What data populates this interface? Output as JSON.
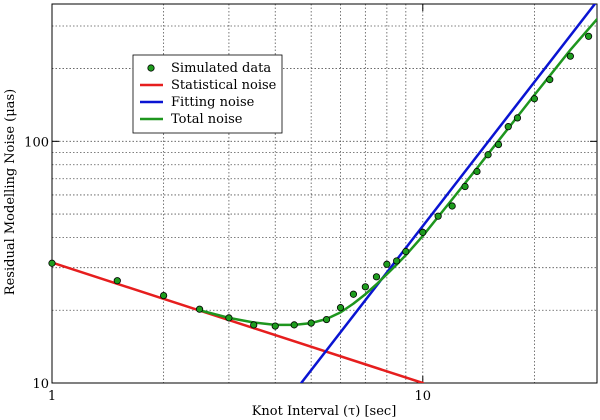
{
  "chart_data": {
    "type": "line",
    "xlabel": "Knot Interval (τ) [sec]",
    "ylabel": "Residual Modelling Noise (μas)",
    "xscale": "log",
    "yscale": "log",
    "xlim": [
      1,
      29.5
    ],
    "ylim": [
      10,
      370
    ],
    "grid": true,
    "legend_position": "upper-left",
    "x_ticks": [
      1,
      10
    ],
    "x_tick_labels": [
      "1",
      "10"
    ],
    "y_ticks": [
      10,
      100
    ],
    "y_tick_labels": [
      "10",
      "100"
    ],
    "series": [
      {
        "name": "Simulated data",
        "kind": "scatter",
        "color": "#1e9d1e",
        "edge_color": "#000000",
        "x": [
          1.0,
          1.5,
          2.0,
          2.5,
          3.0,
          3.5,
          4.0,
          4.5,
          5.0,
          5.5,
          6.0,
          6.5,
          7.0,
          7.5,
          8.0,
          8.5,
          9.0,
          10.0,
          11.0,
          12.0,
          13.0,
          14.0,
          15.0,
          16.0,
          17.0,
          18.0,
          20.0,
          22.0,
          25.0,
          28.0
        ],
        "y": [
          31.3,
          26.5,
          23.0,
          20.2,
          18.6,
          17.4,
          17.2,
          17.4,
          17.7,
          18.3,
          20.5,
          23.3,
          25.0,
          27.5,
          31.0,
          32.0,
          35.0,
          42.0,
          49.0,
          54.0,
          65.0,
          75.0,
          88.0,
          97.0,
          115.0,
          125.0,
          150.0,
          180.0,
          225.0,
          272.0
        ]
      },
      {
        "name": "Statistical noise",
        "kind": "line",
        "color": "#e61e1e",
        "x": [
          1,
          10
        ],
        "y": [
          31.5,
          10.0
        ]
      },
      {
        "name": "Fitting noise",
        "kind": "line",
        "color": "#0a14d2",
        "x": [
          4.7,
          29.5
        ],
        "y": [
          10.0,
          380.0
        ]
      },
      {
        "name": "Total noise",
        "kind": "line",
        "color": "#1e961e",
        "x": [
          2.5,
          3.0,
          3.5,
          4.0,
          4.5,
          5.0,
          5.5,
          6.0,
          6.5,
          7.0,
          7.5,
          8.0,
          8.5,
          9.0,
          10.0,
          12.0,
          14.0,
          17.0,
          20.0,
          25.0,
          29.5
        ],
        "y": [
          20.0,
          18.6,
          17.8,
          17.4,
          17.4,
          17.7,
          18.4,
          19.6,
          21.3,
          23.3,
          25.6,
          28.2,
          30.9,
          33.8,
          40.6,
          57.5,
          77.4,
          113.2,
          155.5,
          238.8,
          320.0
        ]
      }
    ]
  }
}
